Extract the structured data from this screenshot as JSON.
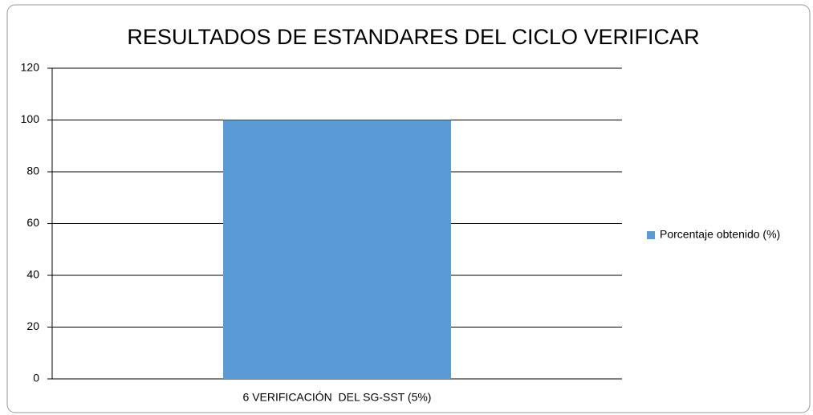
{
  "chart_data": {
    "type": "bar",
    "title": "RESULTADOS DE ESTANDARES DEL CICLO VERIFICAR",
    "categories": [
      "6 VERIFICACIÓN  DEL SG-SST (5%)"
    ],
    "series": [
      {
        "name": "Porcentaje obtenido (%)",
        "color": "#5b9bd5",
        "values": [
          100
        ]
      }
    ],
    "ylim": [
      0,
      120
    ],
    "yticks": [
      0,
      20,
      40,
      60,
      80,
      100,
      120
    ],
    "grid": true,
    "legend": "right"
  }
}
